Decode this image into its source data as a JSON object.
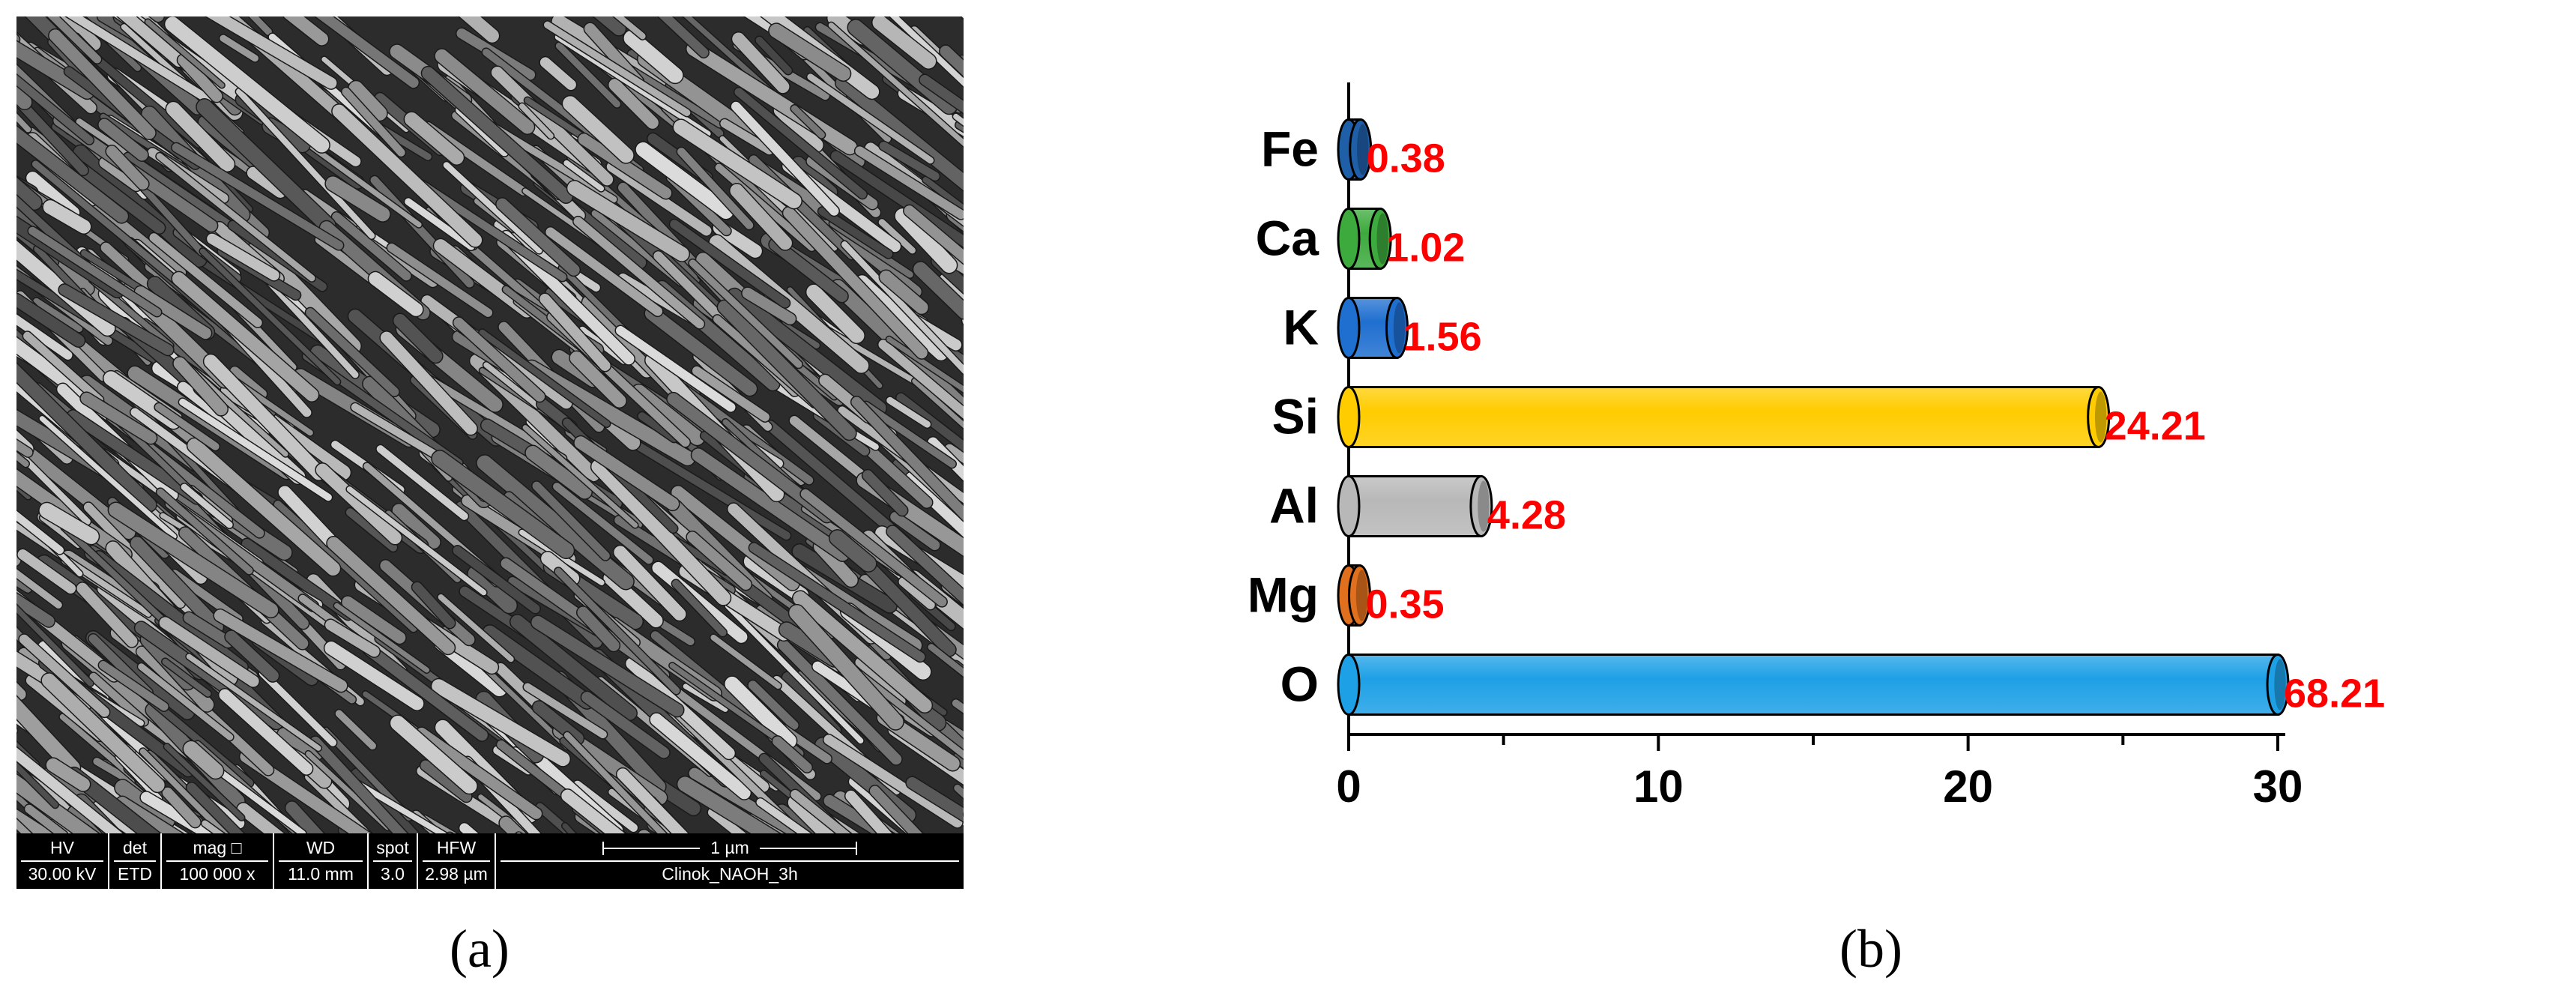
{
  "panel_a": {
    "label": "(a)",
    "databar": {
      "hv": {
        "head": "HV",
        "value": "30.00 kV"
      },
      "det": {
        "head": "det",
        "value": "ETD"
      },
      "mag": {
        "head": "mag □",
        "value": "100 000 x"
      },
      "wd": {
        "head": "WD",
        "value": "11.0 mm"
      },
      "spot": {
        "head": "spot",
        "value": "3.0"
      },
      "hfw": {
        "head": "HFW",
        "value": "2.98 µm"
      },
      "scale": {
        "value": "1 µm",
        "sample": "Clinok_NAOH_3h"
      }
    }
  },
  "panel_b": {
    "label": "(b)"
  },
  "chart_data": {
    "type": "bar",
    "orientation": "horizontal",
    "categories": [
      "Fe",
      "Ca",
      "K",
      "Si",
      "Al",
      "Mg",
      "O"
    ],
    "values": [
      0.38,
      1.02,
      1.56,
      24.21,
      4.28,
      0.35,
      68.21
    ],
    "data_labels": [
      "0.38",
      "1.02",
      "1.56",
      "24.21",
      "4.28",
      "0.35",
      "68.21"
    ],
    "colors": [
      "#1f5fa8",
      "#3daa3d",
      "#1f6fd0",
      "#ffcc00",
      "#b8b8b8",
      "#e0701e",
      "#1ea0e6"
    ],
    "label_color": "#ff0000",
    "xlim": [
      0,
      30
    ],
    "xticks": [
      0,
      10,
      20,
      30
    ],
    "title": "",
    "xlabel": "",
    "ylabel": "",
    "grid": false,
    "bar_style": "3d-cylinder",
    "note": ""
  }
}
